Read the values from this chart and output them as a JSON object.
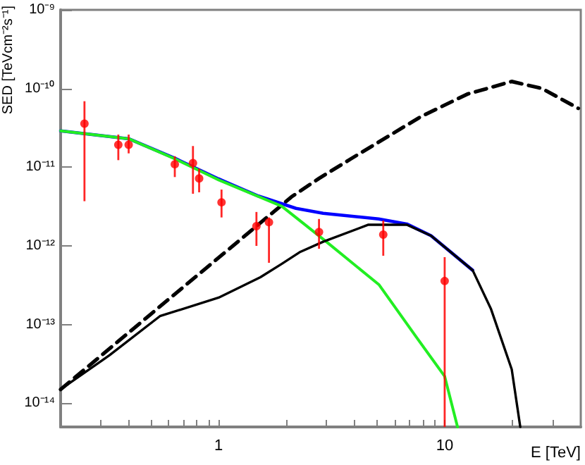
{
  "chart_data": {
    "type": "line",
    "xlabel": "E [TeV]",
    "ylabel": "SED [TeVcm⁻²s⁻¹]",
    "log": "xy",
    "grid": false,
    "xlim": [
      0.2,
      40
    ],
    "ylim": [
      5e-15,
      1e-09
    ],
    "xticks": [
      {
        "value": 0.3,
        "label": null
      },
      {
        "value": 0.4,
        "label": null
      },
      {
        "value": 0.5,
        "label": null
      },
      {
        "value": 0.6,
        "label": null
      },
      {
        "value": 0.7,
        "label": null
      },
      {
        "value": 0.8,
        "label": null
      },
      {
        "value": 0.9,
        "label": null
      },
      1,
      {
        "value": 2,
        "label": null
      },
      {
        "value": 3,
        "label": null
      },
      {
        "value": 4,
        "label": null
      },
      {
        "value": 5,
        "label": null
      },
      {
        "value": 6,
        "label": null
      },
      {
        "value": 7,
        "label": null
      },
      {
        "value": 8,
        "label": null
      },
      {
        "value": 9,
        "label": null
      },
      10,
      {
        "value": 20,
        "label": null
      },
      {
        "value": 30,
        "label": null
      }
    ],
    "yticks": [
      {
        "value": 1e-14,
        "label": "10⁻¹⁴"
      },
      {
        "value": 1e-13,
        "label": "10⁻¹³"
      },
      {
        "value": 1e-12,
        "label": "10⁻¹²"
      },
      {
        "value": 1e-11,
        "label": "10⁻¹¹"
      },
      {
        "value": 1e-10,
        "label": "10⁻¹⁰"
      },
      {
        "value": 1e-09,
        "label": "10⁻⁹"
      }
    ],
    "series": [
      {
        "line_style": "dashed",
        "marker": "none",
        "color": "#000000",
        "x": [
          0.2,
          0.5,
          1.47,
          2.1,
          2.78,
          3.85,
          7.85,
          12.6,
          19.8,
          27,
          39
        ],
        "values": [
          1.5e-14,
          1.35e-13,
          1.78e-12,
          4.2e-12,
          7.2e-12,
          1.28e-11,
          4.4e-11,
          8.5e-11,
          1.23e-10,
          1e-10,
          5.6e-11
        ]
      },
      {
        "line_style": "solid",
        "marker": "none",
        "color": "#0000ff",
        "x": [
          0.2,
          0.4,
          0.64,
          1,
          1.5,
          2.2,
          2.9,
          5.1,
          6.8,
          8.7,
          13.3
        ],
        "values": [
          2.9e-11,
          2.3e-11,
          1.3e-11,
          7.1e-12,
          4.3e-12,
          3e-12,
          2.6e-12,
          2.2e-12,
          1.9e-12,
          1.35e-12,
          4.9e-13
        ]
      },
      {
        "line_style": "solid",
        "marker": "none",
        "color": "#22ee22",
        "x": [
          0.2,
          0.4,
          0.64,
          1,
          1.9,
          2.41,
          3.03,
          5.13,
          7.5,
          10,
          11.4
        ],
        "values": [
          2.9e-11,
          2.3e-11,
          1.28e-11,
          6.9e-12,
          3.2e-12,
          1.86e-12,
          1.1e-12,
          3.2e-13,
          6.9e-14,
          2.2e-14,
          5e-15
        ]
      },
      {
        "line_style": "solid",
        "marker": "none",
        "color": "#000000",
        "x": [
          0.2,
          0.33,
          0.55,
          1,
          1.53,
          1.9,
          2.28,
          2.9,
          4.6,
          6.8,
          8.7,
          13.3,
          16,
          19.8,
          21.6
        ],
        "values": [
          1.5e-14,
          4.1e-14,
          1.28e-13,
          2.2e-13,
          4e-13,
          5.9e-13,
          8.3e-13,
          1.13e-12,
          1.86e-12,
          1.86e-12,
          1.35e-12,
          4.9e-13,
          1.6e-13,
          2.7e-14,
          5e-15
        ]
      },
      {
        "type": "scatter",
        "marker": "circle",
        "color": "#ff0000",
        "x": [
          0.255,
          0.36,
          0.4,
          0.64,
          0.77,
          0.82,
          1.03,
          1.47,
          1.67,
          2.78,
          5.35,
          10
        ],
        "values": [
          3.58e-11,
          1.93e-11,
          1.93e-11,
          1.09e-11,
          1.13e-11,
          7.2e-12,
          3.58e-12,
          1.78e-12,
          2e-12,
          1.5e-12,
          1.39e-12,
          3.58e-13
        ],
        "errors": [
          [
            3.7e-12,
            6.9e-11
          ],
          [
            1.23e-11,
            2.6e-11
          ],
          [
            1.5e-11,
            2.6e-11
          ],
          [
            7.5e-12,
            1.38e-11
          ],
          [
            4.6e-12,
            1.86e-11
          ],
          [
            4.8e-12,
            9.6e-12
          ],
          [
            2.3e-12,
            5.2e-12
          ],
          [
            1e-12,
            2.7e-12
          ],
          [
            6.1e-13,
            2.3e-12
          ],
          [
            9.2e-13,
            2.2e-12
          ],
          [
            7.5e-13,
            2.1e-12
          ],
          [
            5e-15,
            7.2e-13
          ]
        ]
      }
    ]
  }
}
